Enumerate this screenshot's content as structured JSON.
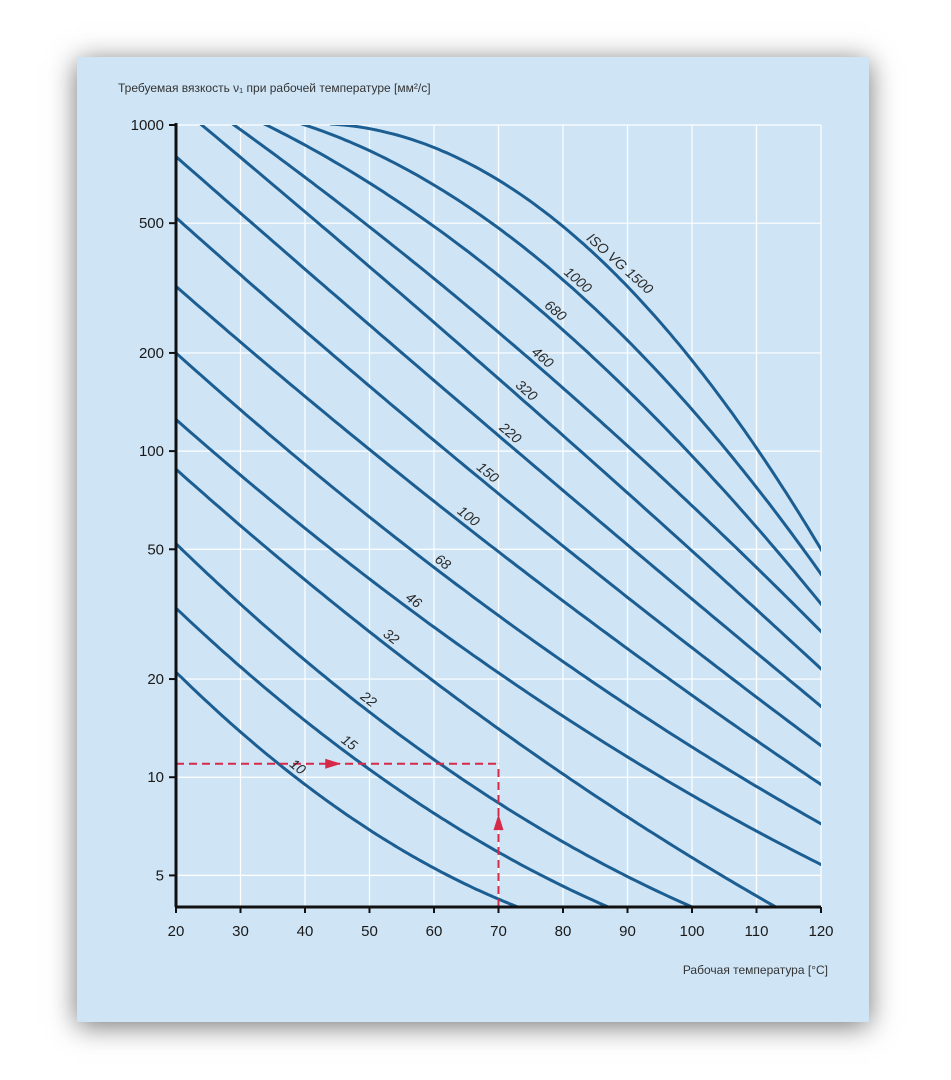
{
  "chart_data": {
    "type": "line",
    "ylabel": "Требуемая вязкость ν₁ при рабочей температуре [мм²/с]",
    "xlabel": "Рабочая температура [°C]",
    "xlim": [
      20,
      120
    ],
    "ylim": [
      4,
      1000
    ],
    "yscale": "log",
    "grid": true,
    "xticks": [
      20,
      30,
      40,
      50,
      60,
      70,
      80,
      90,
      100,
      110,
      120
    ],
    "yticks": [
      5,
      10,
      20,
      50,
      100,
      200,
      500,
      1000
    ],
    "series": [
      {
        "name": "10",
        "label": "10",
        "points": [
          [
            20,
            21
          ],
          [
            40,
            9.5
          ],
          [
            73,
            4
          ]
        ]
      },
      {
        "name": "15",
        "label": "15",
        "points": [
          [
            20,
            33
          ],
          [
            45,
            12.5
          ],
          [
            87,
            4
          ]
        ]
      },
      {
        "name": "22",
        "label": "22",
        "points": [
          [
            20,
            52
          ],
          [
            48,
            17
          ],
          [
            100,
            4
          ]
        ]
      },
      {
        "name": "32",
        "label": "32",
        "points": [
          [
            20,
            88
          ],
          [
            52,
            26
          ],
          [
            113,
            4
          ]
        ]
      },
      {
        "name": "46",
        "label": "46",
        "points": [
          [
            20,
            125
          ],
          [
            56,
            33
          ],
          [
            120,
            5.4
          ]
        ]
      },
      {
        "name": "68",
        "label": "68",
        "points": [
          [
            20,
            200
          ],
          [
            60,
            44
          ],
          [
            120,
            7.2
          ]
        ]
      },
      {
        "name": "100",
        "label": "100",
        "points": [
          [
            20,
            320
          ],
          [
            63,
            63
          ],
          [
            120,
            9.5
          ]
        ]
      },
      {
        "name": "150",
        "label": "150",
        "points": [
          [
            20,
            520
          ],
          [
            66,
            86
          ],
          [
            120,
            12.5
          ]
        ]
      },
      {
        "name": "220",
        "label": "220",
        "points": [
          [
            20,
            800
          ],
          [
            69,
            116
          ],
          [
            120,
            16.5
          ]
        ]
      },
      {
        "name": "320",
        "label": "320",
        "points": [
          [
            24,
            1000
          ],
          [
            72,
            154
          ],
          [
            120,
            21.5
          ]
        ]
      },
      {
        "name": "460",
        "label": "460",
        "points": [
          [
            29,
            1000
          ],
          [
            74,
            198
          ],
          [
            120,
            28
          ]
        ]
      },
      {
        "name": "680",
        "label": "680",
        "points": [
          [
            34,
            1000
          ],
          [
            77,
            265
          ],
          [
            120,
            34
          ]
        ]
      },
      {
        "name": "1000",
        "label": "1000",
        "points": [
          [
            40,
            1000
          ],
          [
            80,
            335
          ],
          [
            120,
            42
          ]
        ]
      },
      {
        "name": "1500",
        "label": "ISO VG 1500",
        "points": [
          [
            46,
            1000
          ],
          [
            85,
            400
          ],
          [
            120,
            50
          ]
        ]
      }
    ],
    "example": {
      "temperature": 70,
      "viscosity": 11,
      "color": "#d62a4a"
    }
  },
  "colors": {
    "curve": "#1c5e92",
    "grid": "#ffffff",
    "axis": "#111111",
    "background": "#cfe5f6",
    "example": "#d62a4a"
  }
}
